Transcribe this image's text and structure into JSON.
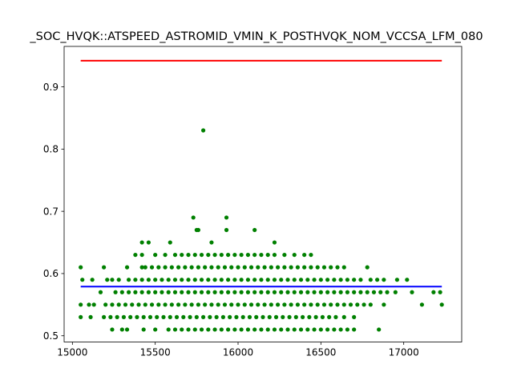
{
  "chart_data": {
    "type": "scatter",
    "title": "_SOC_HVQK::ATSPEED_ASTROMID_VMIN_K_POSTHVQK_NOM_VCCSA_LFM_080",
    "xlabel": "",
    "ylabel": "",
    "xlim": [
      14950,
      17350
    ],
    "ylim": [
      0.49,
      0.965
    ],
    "x_ticks": [
      15000,
      15500,
      16000,
      16500,
      17000
    ],
    "y_ticks": [
      0.5,
      0.6,
      0.7,
      0.8,
      0.9
    ],
    "grid": false,
    "legend": "none",
    "colors": {
      "points": "#008000",
      "upper_limit": "#ff0000",
      "lower_limit": "#0000ff"
    },
    "series": [
      {
        "type": "line",
        "color": "#ff0000",
        "x": [
          15050,
          17230
        ],
        "y": [
          0.942,
          0.942
        ]
      },
      {
        "type": "line",
        "color": "#0000ff",
        "x": [
          15050,
          17230
        ],
        "y": [
          0.579,
          0.579
        ]
      },
      {
        "type": "scatter",
        "color": "#008000",
        "points": [
          [
            15790,
            0.83
          ],
          [
            15730,
            0.69
          ],
          [
            15930,
            0.69
          ],
          [
            15750,
            0.67
          ],
          [
            15760,
            0.67
          ],
          [
            15930,
            0.67
          ],
          [
            16100,
            0.67
          ],
          [
            15420,
            0.65
          ],
          [
            15460,
            0.65
          ],
          [
            15590,
            0.65
          ],
          [
            15840,
            0.65
          ],
          [
            16220,
            0.65
          ],
          [
            15380,
            0.63
          ],
          [
            15420,
            0.63
          ],
          [
            15500,
            0.63
          ],
          [
            15560,
            0.63
          ],
          [
            15620,
            0.63
          ],
          [
            15660,
            0.63
          ],
          [
            15700,
            0.63
          ],
          [
            15740,
            0.63
          ],
          [
            15780,
            0.63
          ],
          [
            15820,
            0.63
          ],
          [
            15860,
            0.63
          ],
          [
            15900,
            0.63
          ],
          [
            15940,
            0.63
          ],
          [
            15980,
            0.63
          ],
          [
            16020,
            0.63
          ],
          [
            16060,
            0.63
          ],
          [
            16100,
            0.63
          ],
          [
            16140,
            0.63
          ],
          [
            16180,
            0.63
          ],
          [
            16220,
            0.63
          ],
          [
            16280,
            0.63
          ],
          [
            16340,
            0.63
          ],
          [
            16400,
            0.63
          ],
          [
            16440,
            0.63
          ],
          [
            15050,
            0.61
          ],
          [
            15190,
            0.61
          ],
          [
            15330,
            0.61
          ],
          [
            15420,
            0.61
          ],
          [
            15440,
            0.61
          ],
          [
            15480,
            0.61
          ],
          [
            15520,
            0.61
          ],
          [
            15560,
            0.61
          ],
          [
            15600,
            0.61
          ],
          [
            15640,
            0.61
          ],
          [
            15680,
            0.61
          ],
          [
            15720,
            0.61
          ],
          [
            15760,
            0.61
          ],
          [
            15800,
            0.61
          ],
          [
            15840,
            0.61
          ],
          [
            15880,
            0.61
          ],
          [
            15920,
            0.61
          ],
          [
            15960,
            0.61
          ],
          [
            16000,
            0.61
          ],
          [
            16040,
            0.61
          ],
          [
            16080,
            0.61
          ],
          [
            16120,
            0.61
          ],
          [
            16160,
            0.61
          ],
          [
            16200,
            0.61
          ],
          [
            16240,
            0.61
          ],
          [
            16280,
            0.61
          ],
          [
            16320,
            0.61
          ],
          [
            16360,
            0.61
          ],
          [
            16400,
            0.61
          ],
          [
            16440,
            0.61
          ],
          [
            16480,
            0.61
          ],
          [
            16520,
            0.61
          ],
          [
            16560,
            0.61
          ],
          [
            16600,
            0.61
          ],
          [
            16640,
            0.61
          ],
          [
            16780,
            0.61
          ],
          [
            15060,
            0.59
          ],
          [
            15120,
            0.59
          ],
          [
            15210,
            0.59
          ],
          [
            15240,
            0.59
          ],
          [
            15280,
            0.59
          ],
          [
            15340,
            0.59
          ],
          [
            15380,
            0.59
          ],
          [
            15420,
            0.59
          ],
          [
            15460,
            0.59
          ],
          [
            15500,
            0.59
          ],
          [
            15540,
            0.59
          ],
          [
            15580,
            0.59
          ],
          [
            15620,
            0.59
          ],
          [
            15660,
            0.59
          ],
          [
            15700,
            0.59
          ],
          [
            15740,
            0.59
          ],
          [
            15780,
            0.59
          ],
          [
            15820,
            0.59
          ],
          [
            15860,
            0.59
          ],
          [
            15900,
            0.59
          ],
          [
            15940,
            0.59
          ],
          [
            15980,
            0.59
          ],
          [
            16020,
            0.59
          ],
          [
            16060,
            0.59
          ],
          [
            16100,
            0.59
          ],
          [
            16140,
            0.59
          ],
          [
            16180,
            0.59
          ],
          [
            16220,
            0.59
          ],
          [
            16260,
            0.59
          ],
          [
            16300,
            0.59
          ],
          [
            16340,
            0.59
          ],
          [
            16380,
            0.59
          ],
          [
            16420,
            0.59
          ],
          [
            16460,
            0.59
          ],
          [
            16500,
            0.59
          ],
          [
            16540,
            0.59
          ],
          [
            16580,
            0.59
          ],
          [
            16620,
            0.59
          ],
          [
            16660,
            0.59
          ],
          [
            16700,
            0.59
          ],
          [
            16740,
            0.59
          ],
          [
            16800,
            0.59
          ],
          [
            16840,
            0.59
          ],
          [
            16880,
            0.59
          ],
          [
            16960,
            0.59
          ],
          [
            17020,
            0.59
          ],
          [
            15170,
            0.57
          ],
          [
            15260,
            0.57
          ],
          [
            15300,
            0.57
          ],
          [
            15340,
            0.57
          ],
          [
            15380,
            0.57
          ],
          [
            15420,
            0.57
          ],
          [
            15460,
            0.57
          ],
          [
            15500,
            0.57
          ],
          [
            15540,
            0.57
          ],
          [
            15580,
            0.57
          ],
          [
            15620,
            0.57
          ],
          [
            15660,
            0.57
          ],
          [
            15700,
            0.57
          ],
          [
            15740,
            0.57
          ],
          [
            15780,
            0.57
          ],
          [
            15820,
            0.57
          ],
          [
            15860,
            0.57
          ],
          [
            15900,
            0.57
          ],
          [
            15940,
            0.57
          ],
          [
            15980,
            0.57
          ],
          [
            16020,
            0.57
          ],
          [
            16060,
            0.57
          ],
          [
            16100,
            0.57
          ],
          [
            16140,
            0.57
          ],
          [
            16180,
            0.57
          ],
          [
            16220,
            0.57
          ],
          [
            16260,
            0.57
          ],
          [
            16300,
            0.57
          ],
          [
            16340,
            0.57
          ],
          [
            16380,
            0.57
          ],
          [
            16420,
            0.57
          ],
          [
            16460,
            0.57
          ],
          [
            16500,
            0.57
          ],
          [
            16540,
            0.57
          ],
          [
            16580,
            0.57
          ],
          [
            16620,
            0.57
          ],
          [
            16660,
            0.57
          ],
          [
            16700,
            0.57
          ],
          [
            16740,
            0.57
          ],
          [
            16780,
            0.57
          ],
          [
            16820,
            0.57
          ],
          [
            16860,
            0.57
          ],
          [
            16900,
            0.57
          ],
          [
            16950,
            0.57
          ],
          [
            17050,
            0.57
          ],
          [
            17180,
            0.57
          ],
          [
            17220,
            0.57
          ],
          [
            15050,
            0.55
          ],
          [
            15100,
            0.55
          ],
          [
            15130,
            0.55
          ],
          [
            15200,
            0.55
          ],
          [
            15240,
            0.55
          ],
          [
            15280,
            0.55
          ],
          [
            15320,
            0.55
          ],
          [
            15360,
            0.55
          ],
          [
            15400,
            0.55
          ],
          [
            15440,
            0.55
          ],
          [
            15480,
            0.55
          ],
          [
            15520,
            0.55
          ],
          [
            15560,
            0.55
          ],
          [
            15600,
            0.55
          ],
          [
            15640,
            0.55
          ],
          [
            15680,
            0.55
          ],
          [
            15720,
            0.55
          ],
          [
            15760,
            0.55
          ],
          [
            15800,
            0.55
          ],
          [
            15840,
            0.55
          ],
          [
            15880,
            0.55
          ],
          [
            15920,
            0.55
          ],
          [
            15960,
            0.55
          ],
          [
            16000,
            0.55
          ],
          [
            16040,
            0.55
          ],
          [
            16080,
            0.55
          ],
          [
            16120,
            0.55
          ],
          [
            16160,
            0.55
          ],
          [
            16200,
            0.55
          ],
          [
            16240,
            0.55
          ],
          [
            16280,
            0.55
          ],
          [
            16320,
            0.55
          ],
          [
            16360,
            0.55
          ],
          [
            16400,
            0.55
          ],
          [
            16440,
            0.55
          ],
          [
            16480,
            0.55
          ],
          [
            16520,
            0.55
          ],
          [
            16560,
            0.55
          ],
          [
            16600,
            0.55
          ],
          [
            16640,
            0.55
          ],
          [
            16680,
            0.55
          ],
          [
            16720,
            0.55
          ],
          [
            16760,
            0.55
          ],
          [
            16800,
            0.55
          ],
          [
            16880,
            0.55
          ],
          [
            17110,
            0.55
          ],
          [
            17230,
            0.55
          ],
          [
            15050,
            0.53
          ],
          [
            15110,
            0.53
          ],
          [
            15190,
            0.53
          ],
          [
            15230,
            0.53
          ],
          [
            15270,
            0.53
          ],
          [
            15310,
            0.53
          ],
          [
            15350,
            0.53
          ],
          [
            15390,
            0.53
          ],
          [
            15430,
            0.53
          ],
          [
            15470,
            0.53
          ],
          [
            15510,
            0.53
          ],
          [
            15550,
            0.53
          ],
          [
            15590,
            0.53
          ],
          [
            15630,
            0.53
          ],
          [
            15670,
            0.53
          ],
          [
            15710,
            0.53
          ],
          [
            15750,
            0.53
          ],
          [
            15790,
            0.53
          ],
          [
            15830,
            0.53
          ],
          [
            15870,
            0.53
          ],
          [
            15910,
            0.53
          ],
          [
            15950,
            0.53
          ],
          [
            15990,
            0.53
          ],
          [
            16030,
            0.53
          ],
          [
            16070,
            0.53
          ],
          [
            16110,
            0.53
          ],
          [
            16150,
            0.53
          ],
          [
            16190,
            0.53
          ],
          [
            16230,
            0.53
          ],
          [
            16270,
            0.53
          ],
          [
            16310,
            0.53
          ],
          [
            16350,
            0.53
          ],
          [
            16390,
            0.53
          ],
          [
            16430,
            0.53
          ],
          [
            16470,
            0.53
          ],
          [
            16510,
            0.53
          ],
          [
            16550,
            0.53
          ],
          [
            16590,
            0.53
          ],
          [
            16640,
            0.53
          ],
          [
            16700,
            0.53
          ],
          [
            15240,
            0.51
          ],
          [
            15300,
            0.51
          ],
          [
            15330,
            0.51
          ],
          [
            15430,
            0.51
          ],
          [
            15500,
            0.51
          ],
          [
            15580,
            0.51
          ],
          [
            15620,
            0.51
          ],
          [
            15660,
            0.51
          ],
          [
            15700,
            0.51
          ],
          [
            15740,
            0.51
          ],
          [
            15780,
            0.51
          ],
          [
            15820,
            0.51
          ],
          [
            15860,
            0.51
          ],
          [
            15900,
            0.51
          ],
          [
            15940,
            0.51
          ],
          [
            15980,
            0.51
          ],
          [
            16020,
            0.51
          ],
          [
            16060,
            0.51
          ],
          [
            16100,
            0.51
          ],
          [
            16140,
            0.51
          ],
          [
            16180,
            0.51
          ],
          [
            16220,
            0.51
          ],
          [
            16260,
            0.51
          ],
          [
            16300,
            0.51
          ],
          [
            16340,
            0.51
          ],
          [
            16380,
            0.51
          ],
          [
            16420,
            0.51
          ],
          [
            16460,
            0.51
          ],
          [
            16500,
            0.51
          ],
          [
            16540,
            0.51
          ],
          [
            16580,
            0.51
          ],
          [
            16620,
            0.51
          ],
          [
            16660,
            0.51
          ],
          [
            16700,
            0.51
          ],
          [
            16850,
            0.51
          ]
        ]
      }
    ]
  }
}
